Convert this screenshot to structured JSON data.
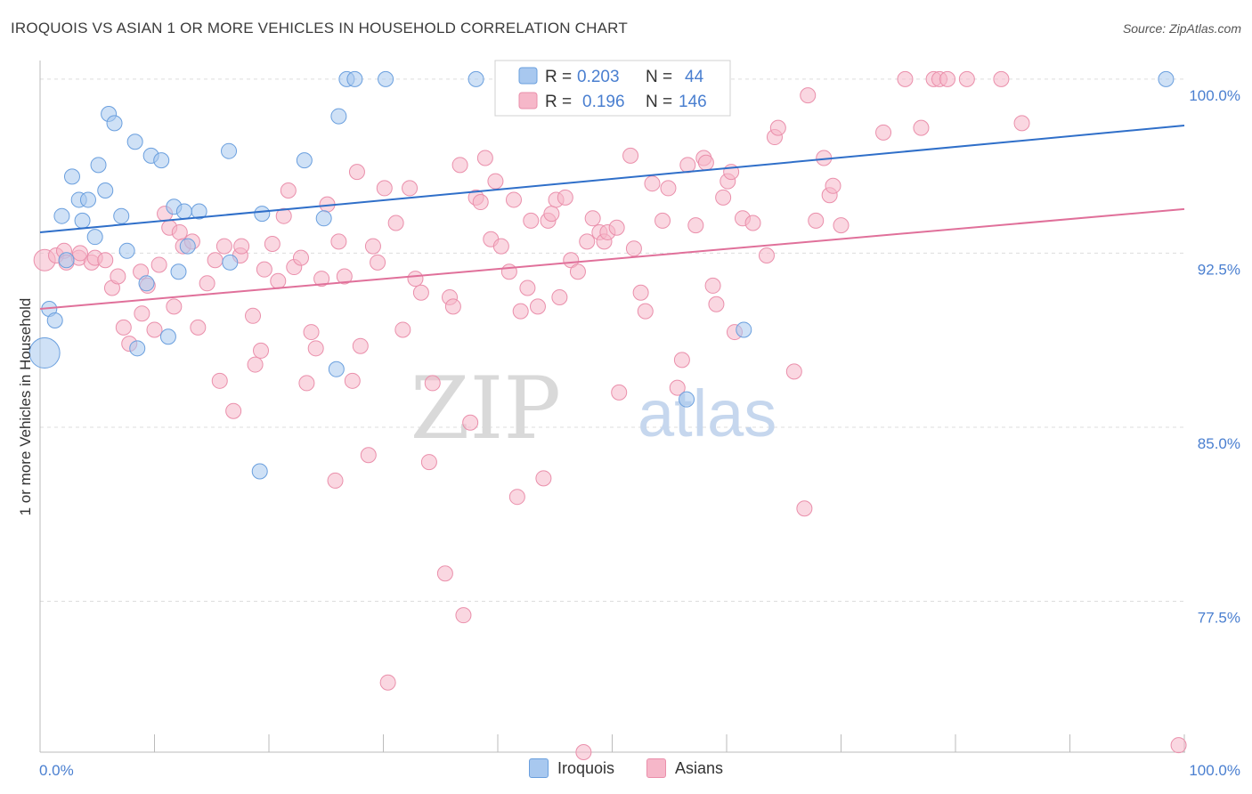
{
  "title": "IROQUOIS VS ASIAN 1 OR MORE VEHICLES IN HOUSEHOLD CORRELATION CHART",
  "source": "Source: ZipAtlas.com",
  "watermark": {
    "zip": "ZIP",
    "atlas": "atlas"
  },
  "colors": {
    "iroquois_fill": "#a8c8ef",
    "iroquois_stroke": "#6a9fde",
    "iroquois_line": "#2f6fc9",
    "asian_fill": "#f6b7c9",
    "asian_stroke": "#ea8fab",
    "asian_line": "#e0709a",
    "tick_label": "#4a7fd0",
    "grid": "#dddddd"
  },
  "legend": {
    "rows": [
      {
        "r_label": "R =",
        "r_value": "0.203",
        "n_label": "N =",
        "n_value": "44"
      },
      {
        "r_label": "R =",
        "r_value": "0.196",
        "n_label": "N =",
        "n_value": "146"
      }
    ]
  },
  "bottom_legend": [
    {
      "label": "Iroquois"
    },
    {
      "label": "Asians"
    }
  ],
  "chart_data": {
    "type": "scatter",
    "title": "IROQUOIS VS ASIAN 1 OR MORE VEHICLES IN HOUSEHOLD CORRELATION CHART",
    "xlabel": "",
    "ylabel": "1 or more Vehicles in Household",
    "xlim": [
      0,
      100
    ],
    "ylim": [
      71,
      100.8
    ],
    "x_tick_labels": [
      {
        "value": 0,
        "label": "0.0%"
      },
      {
        "value": 100,
        "label": "100.0%"
      }
    ],
    "y_tick_labels": [
      {
        "value": 100,
        "label": "100.0%"
      },
      {
        "value": 92.5,
        "label": "92.5%"
      },
      {
        "value": 85,
        "label": "85.0%"
      },
      {
        "value": 77.5,
        "label": "77.5%"
      }
    ],
    "series": [
      {
        "name": "Iroquois",
        "r": 0.203,
        "n": 44,
        "trend": {
          "x": [
            0,
            100
          ],
          "y": [
            93.4,
            98.0
          ]
        },
        "points": [
          [
            0.4,
            88.2,
            "L"
          ],
          [
            0.8,
            90.1
          ],
          [
            1.3,
            89.6
          ],
          [
            1.9,
            94.1
          ],
          [
            2.3,
            92.2
          ],
          [
            2.8,
            95.8
          ],
          [
            3.4,
            94.8
          ],
          [
            3.7,
            93.9
          ],
          [
            4.2,
            94.8
          ],
          [
            4.8,
            93.2
          ],
          [
            5.1,
            96.3
          ],
          [
            5.7,
            95.2
          ],
          [
            6.0,
            98.5
          ],
          [
            6.5,
            98.1
          ],
          [
            7.1,
            94.1
          ],
          [
            7.6,
            92.6
          ],
          [
            8.3,
            97.3
          ],
          [
            8.5,
            88.4
          ],
          [
            9.3,
            91.2
          ],
          [
            9.7,
            96.7
          ],
          [
            10.6,
            96.5
          ],
          [
            11.2,
            88.9
          ],
          [
            11.7,
            94.5
          ],
          [
            12.1,
            91.7
          ],
          [
            12.6,
            94.3
          ],
          [
            12.9,
            92.8
          ],
          [
            13.9,
            94.3
          ],
          [
            16.5,
            96.9
          ],
          [
            16.6,
            92.1
          ],
          [
            19.2,
            83.1
          ],
          [
            19.4,
            94.2
          ],
          [
            23.1,
            96.5
          ],
          [
            24.8,
            94.0
          ],
          [
            25.9,
            87.5
          ],
          [
            26.1,
            98.4
          ],
          [
            26.8,
            100.0
          ],
          [
            27.5,
            100.0
          ],
          [
            30.2,
            100.0
          ],
          [
            38.1,
            100.0
          ],
          [
            41.9,
            99.8
          ],
          [
            54.6,
            100.0
          ],
          [
            56.5,
            86.2
          ],
          [
            61.5,
            89.2
          ],
          [
            98.4,
            100.0
          ]
        ]
      },
      {
        "name": "Asians",
        "r": 0.196,
        "n": 146,
        "trend": {
          "x": [
            0,
            100
          ],
          "y": [
            90.1,
            94.4
          ]
        },
        "points": [
          [
            0.4,
            92.2,
            "M"
          ],
          [
            1.4,
            92.4
          ],
          [
            2.1,
            92.6
          ],
          [
            2.3,
            92.1
          ],
          [
            3.4,
            92.3
          ],
          [
            3.5,
            92.5
          ],
          [
            4.5,
            92.1
          ],
          [
            4.8,
            92.3
          ],
          [
            5.7,
            92.2
          ],
          [
            6.3,
            91.0
          ],
          [
            6.8,
            91.5
          ],
          [
            7.3,
            89.3
          ],
          [
            7.8,
            88.6
          ],
          [
            8.8,
            91.7
          ],
          [
            8.9,
            89.9
          ],
          [
            9.4,
            91.1
          ],
          [
            10.0,
            89.2
          ],
          [
            10.4,
            92.0
          ],
          [
            10.9,
            94.2
          ],
          [
            11.3,
            93.6
          ],
          [
            11.7,
            90.2
          ],
          [
            12.2,
            93.4
          ],
          [
            12.5,
            92.8
          ],
          [
            13.3,
            93.0
          ],
          [
            13.8,
            89.3
          ],
          [
            14.6,
            91.2
          ],
          [
            15.3,
            92.2
          ],
          [
            15.7,
            87.0
          ],
          [
            16.1,
            92.8
          ],
          [
            16.9,
            85.7
          ],
          [
            17.5,
            92.4
          ],
          [
            17.6,
            92.8
          ],
          [
            18.6,
            89.8
          ],
          [
            18.8,
            87.7
          ],
          [
            19.3,
            88.3
          ],
          [
            19.6,
            91.8
          ],
          [
            20.3,
            92.9
          ],
          [
            20.8,
            91.3
          ],
          [
            21.3,
            94.1
          ],
          [
            21.7,
            95.2
          ],
          [
            22.2,
            91.9
          ],
          [
            22.8,
            92.3
          ],
          [
            23.3,
            86.9
          ],
          [
            23.7,
            89.1
          ],
          [
            24.1,
            88.4
          ],
          [
            24.6,
            91.4
          ],
          [
            25.1,
            94.6
          ],
          [
            25.8,
            82.7
          ],
          [
            26.1,
            93.0
          ],
          [
            26.6,
            91.5
          ],
          [
            27.3,
            87.0
          ],
          [
            27.7,
            96.0
          ],
          [
            28.0,
            88.5
          ],
          [
            28.7,
            83.8
          ],
          [
            29.1,
            92.8
          ],
          [
            29.5,
            92.1
          ],
          [
            30.1,
            95.3
          ],
          [
            30.4,
            74.0
          ],
          [
            31.1,
            93.8
          ],
          [
            31.7,
            89.2
          ],
          [
            32.3,
            95.3
          ],
          [
            32.8,
            91.4
          ],
          [
            33.3,
            90.8
          ],
          [
            34.0,
            83.5
          ],
          [
            34.3,
            86.9
          ],
          [
            35.4,
            78.7
          ],
          [
            35.8,
            90.6
          ],
          [
            36.1,
            90.2
          ],
          [
            36.7,
            96.3
          ],
          [
            37.0,
            76.9
          ],
          [
            37.6,
            85.2
          ],
          [
            38.1,
            94.9
          ],
          [
            38.5,
            94.7
          ],
          [
            38.9,
            96.6
          ],
          [
            39.4,
            93.1
          ],
          [
            39.8,
            95.6
          ],
          [
            40.3,
            92.8
          ],
          [
            41.0,
            91.7
          ],
          [
            41.4,
            94.8
          ],
          [
            41.7,
            82.0
          ],
          [
            42.0,
            90.0
          ],
          [
            42.6,
            91.0
          ],
          [
            42.9,
            93.9
          ],
          [
            43.5,
            90.2
          ],
          [
            44.0,
            82.8
          ],
          [
            44.4,
            93.9
          ],
          [
            44.7,
            94.2
          ],
          [
            45.1,
            94.8
          ],
          [
            45.4,
            90.6
          ],
          [
            45.9,
            94.9
          ],
          [
            46.4,
            92.2
          ],
          [
            47.0,
            91.7
          ],
          [
            47.5,
            71.0
          ],
          [
            47.8,
            93.0
          ],
          [
            48.3,
            94.0
          ],
          [
            48.9,
            93.4
          ],
          [
            49.3,
            93.0
          ],
          [
            49.6,
            93.4
          ],
          [
            50.4,
            93.6
          ],
          [
            50.6,
            86.5
          ],
          [
            51.6,
            96.7
          ],
          [
            51.9,
            92.7
          ],
          [
            52.5,
            90.8
          ],
          [
            52.9,
            90.0
          ],
          [
            53.5,
            95.5
          ],
          [
            54.4,
            93.9
          ],
          [
            54.9,
            95.3
          ],
          [
            55.7,
            86.7
          ],
          [
            56.1,
            87.9
          ],
          [
            56.6,
            96.3
          ],
          [
            57.3,
            93.7
          ],
          [
            58.0,
            96.6
          ],
          [
            58.2,
            96.4
          ],
          [
            58.8,
            91.1
          ],
          [
            59.1,
            90.3
          ],
          [
            59.7,
            94.9
          ],
          [
            60.1,
            95.6
          ],
          [
            60.4,
            96.0
          ],
          [
            60.7,
            89.1
          ],
          [
            61.4,
            94.0
          ],
          [
            62.3,
            93.8
          ],
          [
            63.5,
            92.4
          ],
          [
            64.2,
            97.5
          ],
          [
            64.5,
            97.9
          ],
          [
            65.9,
            87.4
          ],
          [
            66.8,
            81.5
          ],
          [
            67.1,
            99.3
          ],
          [
            67.8,
            93.9
          ],
          [
            68.5,
            96.6
          ],
          [
            69.0,
            95.0
          ],
          [
            69.3,
            95.4
          ],
          [
            70.0,
            93.7
          ],
          [
            73.7,
            97.7
          ],
          [
            75.6,
            100.0
          ],
          [
            77.0,
            97.9
          ],
          [
            78.1,
            100.0
          ],
          [
            78.6,
            100.0
          ],
          [
            79.3,
            100.0
          ],
          [
            81.0,
            100.0
          ],
          [
            84.0,
            100.0
          ],
          [
            85.8,
            98.1
          ],
          [
            99.5,
            71.3
          ]
        ]
      }
    ]
  }
}
